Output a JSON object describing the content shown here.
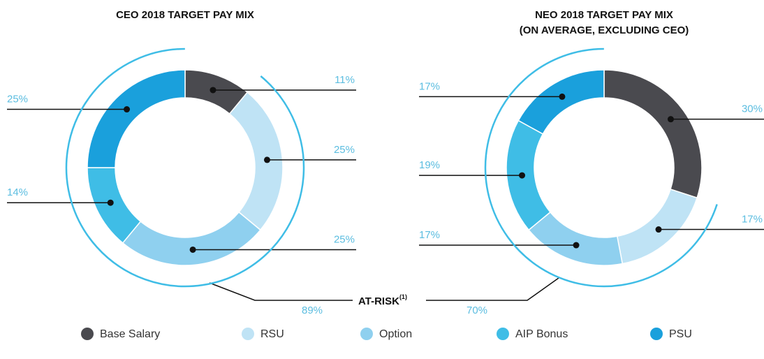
{
  "chart_data": [
    {
      "type": "pie",
      "title": "CEO 2018 TARGET PAY MIX",
      "categories": [
        "Base Salary",
        "RSU",
        "Option",
        "AIP Bonus",
        "PSU"
      ],
      "values": [
        11,
        25,
        25,
        14,
        25
      ],
      "value_labels": [
        "11%",
        "25%",
        "25%",
        "14%",
        "25%"
      ],
      "colors": [
        "#4a4a4f",
        "#bfe3f5",
        "#8fd0ef",
        "#3fbde6",
        "#1aa0dc"
      ],
      "at_risk": 89,
      "at_risk_label": "89%"
    },
    {
      "type": "pie",
      "title": "NEO 2018 TARGET PAY MIX",
      "subtitle": "(ON AVERAGE, EXCLUDING CEO)",
      "categories": [
        "Base Salary",
        "RSU",
        "Option",
        "AIP Bonus",
        "PSU"
      ],
      "values": [
        30,
        17,
        17,
        19,
        17
      ],
      "value_labels": [
        "30%",
        "17%",
        "17%",
        "19%",
        "17%"
      ],
      "colors": [
        "#4a4a4f",
        "#bfe3f5",
        "#8fd0ef",
        "#3fbde6",
        "#1aa0dc"
      ],
      "at_risk": 70,
      "at_risk_label": "70%"
    }
  ],
  "annotation": {
    "text": "AT-RISK",
    "note": "(1)"
  }
}
